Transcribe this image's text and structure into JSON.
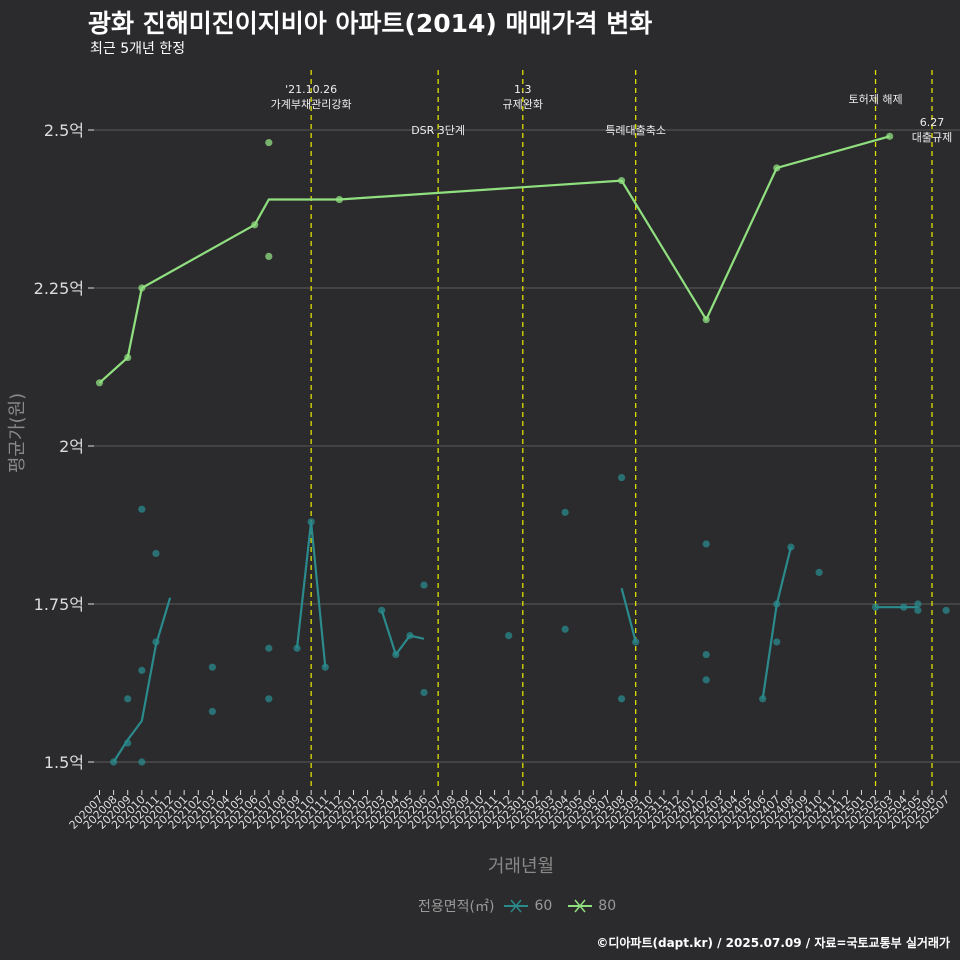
{
  "title": "광화 진해미진이지비아 아파트(2014) 매매가격 변화",
  "subtitle": "최근 5개년 한정",
  "caption": "©디아파트(dapt.kr) / 2025.07.09 / 자료=국토교통부 실거래가",
  "colors": {
    "background": "#2b2a2c",
    "grid": "#5c5c5c",
    "event_line": "#e0e000",
    "series_60": "#2a8a8c",
    "series_80": "#90e080"
  },
  "chart_data": {
    "type": "line",
    "xlabel": "거래년월",
    "ylabel": "평균가(원)",
    "ylim": [
      1.43,
      2.62
    ],
    "y_ticks": [
      {
        "value": 1.5,
        "label": "1.5억"
      },
      {
        "value": 1.75,
        "label": "1.75억"
      },
      {
        "value": 2.0,
        "label": "2억"
      },
      {
        "value": 2.25,
        "label": "2.25억"
      },
      {
        "value": 2.5,
        "label": "2.5억"
      }
    ],
    "x_ticks": [
      "202007",
      "202008",
      "202009",
      "202010",
      "202011",
      "202012",
      "202101",
      "202102",
      "202103",
      "202104",
      "202105",
      "202106",
      "202107",
      "202108",
      "202109",
      "202110",
      "202111",
      "202112",
      "202201",
      "202202",
      "202203",
      "202204",
      "202205",
      "202206",
      "202207",
      "202208",
      "202209",
      "202210",
      "202211",
      "202212",
      "202301",
      "202302",
      "202303",
      "202304",
      "202305",
      "202306",
      "202307",
      "202308",
      "202309",
      "202310",
      "202311",
      "202312",
      "202401",
      "202402",
      "202403",
      "202404",
      "202405",
      "202406",
      "202407",
      "202408",
      "202409",
      "202410",
      "202411",
      "202412",
      "202501",
      "202502",
      "202503",
      "202504",
      "202505",
      "202506",
      "202507"
    ],
    "grid": "horizontal",
    "legend": {
      "title": "전용면적(㎡)",
      "position": "bottom"
    },
    "events": [
      {
        "month": "202110",
        "label": [
          "'21.10.26",
          "가계부채관리강화"
        ],
        "label_row": 0
      },
      {
        "month": "202207",
        "label": [
          "DSR 3단계"
        ],
        "label_row": 1
      },
      {
        "month": "202301",
        "label": [
          "1.3",
          "규제완화"
        ],
        "label_row": 0
      },
      {
        "month": "202309",
        "label": [
          "특례대출축소"
        ],
        "label_row": 1
      },
      {
        "month": "202502",
        "label": [
          "토허제 해제"
        ],
        "label_row": 0
      },
      {
        "month": "202506",
        "label": [
          "6.27",
          "대출규제"
        ],
        "label_row": 1
      }
    ],
    "series": [
      {
        "name": "60",
        "color": "#2a8a8c",
        "line_segments": [
          [
            [
              "202008",
              1.5
            ],
            [
              "202009",
              1.535
            ],
            [
              "202010",
              1.565
            ],
            [
              "202011",
              1.685
            ],
            [
              "202012",
              1.76
            ]
          ],
          [
            [
              "202109",
              1.68
            ],
            [
              "202110",
              1.88
            ],
            [
              "202111",
              1.65
            ]
          ],
          [
            [
              "202203",
              1.74
            ],
            [
              "202204",
              1.67
            ],
            [
              "202205",
              1.7
            ],
            [
              "202206",
              1.695
            ]
          ],
          [
            [
              "202308",
              1.775
            ],
            [
              "202309",
              1.69
            ]
          ],
          [
            [
              "202406",
              1.6
            ],
            [
              "202407",
              1.75
            ],
            [
              "202408",
              1.84
            ]
          ],
          [
            [
              "202502",
              1.745
            ],
            [
              "202503",
              1.745
            ],
            [
              "202504",
              1.745
            ],
            [
              "202505",
              1.745
            ]
          ]
        ],
        "points": [
          [
            "202008",
            1.5
          ],
          [
            "202009",
            1.6
          ],
          [
            "202009",
            1.53
          ],
          [
            "202010",
            1.645
          ],
          [
            "202010",
            1.5
          ],
          [
            "202010",
            1.9
          ],
          [
            "202011",
            1.69
          ],
          [
            "202011",
            1.83
          ],
          [
            "202103",
            1.65
          ],
          [
            "202103",
            1.58
          ],
          [
            "202107",
            1.68
          ],
          [
            "202107",
            1.6
          ],
          [
            "202109",
            1.68
          ],
          [
            "202110",
            1.88
          ],
          [
            "202111",
            1.65
          ],
          [
            "202203",
            1.74
          ],
          [
            "202204",
            1.67
          ],
          [
            "202205",
            1.7
          ],
          [
            "202206",
            1.61
          ],
          [
            "202206",
            1.78
          ],
          [
            "202212",
            1.7
          ],
          [
            "202304",
            1.71
          ],
          [
            "202304",
            1.895
          ],
          [
            "202308",
            1.95
          ],
          [
            "202308",
            1.6
          ],
          [
            "202309",
            1.69
          ],
          [
            "202402",
            1.845
          ],
          [
            "202402",
            1.67
          ],
          [
            "202402",
            1.63
          ],
          [
            "202406",
            1.6
          ],
          [
            "202407",
            1.75
          ],
          [
            "202407",
            1.69
          ],
          [
            "202408",
            1.84
          ],
          [
            "202410",
            1.8
          ],
          [
            "202502",
            1.745
          ],
          [
            "202504",
            1.745
          ],
          [
            "202505",
            1.75
          ],
          [
            "202505",
            1.74
          ],
          [
            "202507",
            1.74
          ]
        ]
      },
      {
        "name": "80",
        "color": "#90e080",
        "line_segments": [
          [
            [
              "202007",
              2.1
            ],
            [
              "202009",
              2.14
            ],
            [
              "202010",
              2.25
            ],
            [
              "202106",
              2.35
            ],
            [
              "202107",
              2.39
            ],
            [
              "202112",
              2.39
            ],
            [
              "202308",
              2.42
            ],
            [
              "202402",
              2.2
            ],
            [
              "202407",
              2.44
            ],
            [
              "202503",
              2.49
            ]
          ]
        ],
        "points": [
          [
            "202007",
            2.1
          ],
          [
            "202009",
            2.14
          ],
          [
            "202010",
            2.25
          ],
          [
            "202106",
            2.35
          ],
          [
            "202107",
            2.48
          ],
          [
            "202107",
            2.3
          ],
          [
            "202112",
            2.39
          ],
          [
            "202308",
            2.42
          ],
          [
            "202402",
            2.2
          ],
          [
            "202407",
            2.44
          ],
          [
            "202503",
            2.49
          ]
        ]
      }
    ]
  }
}
